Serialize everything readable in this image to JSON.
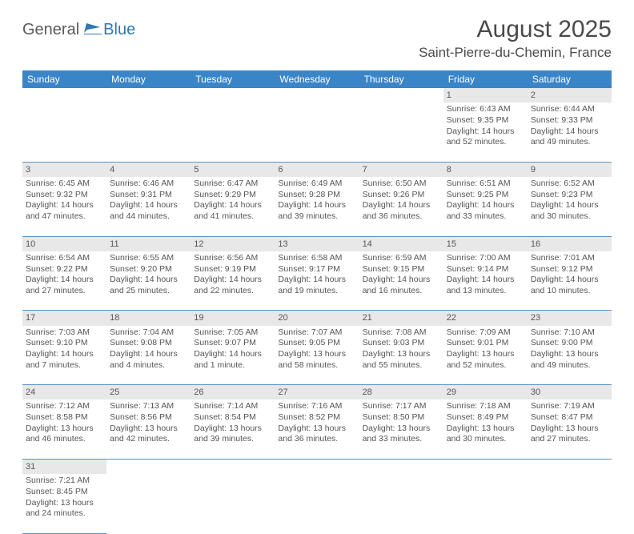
{
  "logo": {
    "general": "General",
    "blue": "Blue"
  },
  "title": "August 2025",
  "location": "Saint-Pierre-du-Chemin, France",
  "headers": [
    "Sunday",
    "Monday",
    "Tuesday",
    "Wednesday",
    "Thursday",
    "Friday",
    "Saturday"
  ],
  "colors": {
    "header_bg": "#3a85c7",
    "header_text": "#ffffff",
    "daynum_bg": "#e8e8e8",
    "row_border": "#5a93c4",
    "text": "#555555",
    "logo_gray": "#5a5a5a",
    "logo_blue": "#2f77b5"
  },
  "weeks": [
    [
      null,
      null,
      null,
      null,
      null,
      {
        "n": "1",
        "sr": "6:43 AM",
        "ss": "9:35 PM",
        "dl": "14 hours and 52 minutes."
      },
      {
        "n": "2",
        "sr": "6:44 AM",
        "ss": "9:33 PM",
        "dl": "14 hours and 49 minutes."
      }
    ],
    [
      {
        "n": "3",
        "sr": "6:45 AM",
        "ss": "9:32 PM",
        "dl": "14 hours and 47 minutes."
      },
      {
        "n": "4",
        "sr": "6:46 AM",
        "ss": "9:31 PM",
        "dl": "14 hours and 44 minutes."
      },
      {
        "n": "5",
        "sr": "6:47 AM",
        "ss": "9:29 PM",
        "dl": "14 hours and 41 minutes."
      },
      {
        "n": "6",
        "sr": "6:49 AM",
        "ss": "9:28 PM",
        "dl": "14 hours and 39 minutes."
      },
      {
        "n": "7",
        "sr": "6:50 AM",
        "ss": "9:26 PM",
        "dl": "14 hours and 36 minutes."
      },
      {
        "n": "8",
        "sr": "6:51 AM",
        "ss": "9:25 PM",
        "dl": "14 hours and 33 minutes."
      },
      {
        "n": "9",
        "sr": "6:52 AM",
        "ss": "9:23 PM",
        "dl": "14 hours and 30 minutes."
      }
    ],
    [
      {
        "n": "10",
        "sr": "6:54 AM",
        "ss": "9:22 PM",
        "dl": "14 hours and 27 minutes."
      },
      {
        "n": "11",
        "sr": "6:55 AM",
        "ss": "9:20 PM",
        "dl": "14 hours and 25 minutes."
      },
      {
        "n": "12",
        "sr": "6:56 AM",
        "ss": "9:19 PM",
        "dl": "14 hours and 22 minutes."
      },
      {
        "n": "13",
        "sr": "6:58 AM",
        "ss": "9:17 PM",
        "dl": "14 hours and 19 minutes."
      },
      {
        "n": "14",
        "sr": "6:59 AM",
        "ss": "9:15 PM",
        "dl": "14 hours and 16 minutes."
      },
      {
        "n": "15",
        "sr": "7:00 AM",
        "ss": "9:14 PM",
        "dl": "14 hours and 13 minutes."
      },
      {
        "n": "16",
        "sr": "7:01 AM",
        "ss": "9:12 PM",
        "dl": "14 hours and 10 minutes."
      }
    ],
    [
      {
        "n": "17",
        "sr": "7:03 AM",
        "ss": "9:10 PM",
        "dl": "14 hours and 7 minutes."
      },
      {
        "n": "18",
        "sr": "7:04 AM",
        "ss": "9:08 PM",
        "dl": "14 hours and 4 minutes."
      },
      {
        "n": "19",
        "sr": "7:05 AM",
        "ss": "9:07 PM",
        "dl": "14 hours and 1 minute."
      },
      {
        "n": "20",
        "sr": "7:07 AM",
        "ss": "9:05 PM",
        "dl": "13 hours and 58 minutes."
      },
      {
        "n": "21",
        "sr": "7:08 AM",
        "ss": "9:03 PM",
        "dl": "13 hours and 55 minutes."
      },
      {
        "n": "22",
        "sr": "7:09 AM",
        "ss": "9:01 PM",
        "dl": "13 hours and 52 minutes."
      },
      {
        "n": "23",
        "sr": "7:10 AM",
        "ss": "9:00 PM",
        "dl": "13 hours and 49 minutes."
      }
    ],
    [
      {
        "n": "24",
        "sr": "7:12 AM",
        "ss": "8:58 PM",
        "dl": "13 hours and 46 minutes."
      },
      {
        "n": "25",
        "sr": "7:13 AM",
        "ss": "8:56 PM",
        "dl": "13 hours and 42 minutes."
      },
      {
        "n": "26",
        "sr": "7:14 AM",
        "ss": "8:54 PM",
        "dl": "13 hours and 39 minutes."
      },
      {
        "n": "27",
        "sr": "7:16 AM",
        "ss": "8:52 PM",
        "dl": "13 hours and 36 minutes."
      },
      {
        "n": "28",
        "sr": "7:17 AM",
        "ss": "8:50 PM",
        "dl": "13 hours and 33 minutes."
      },
      {
        "n": "29",
        "sr": "7:18 AM",
        "ss": "8:49 PM",
        "dl": "13 hours and 30 minutes."
      },
      {
        "n": "30",
        "sr": "7:19 AM",
        "ss": "8:47 PM",
        "dl": "13 hours and 27 minutes."
      }
    ],
    [
      {
        "n": "31",
        "sr": "7:21 AM",
        "ss": "8:45 PM",
        "dl": "13 hours and 24 minutes."
      },
      null,
      null,
      null,
      null,
      null,
      null
    ]
  ],
  "labels": {
    "sunrise": "Sunrise: ",
    "sunset": "Sunset: ",
    "daylight": "Daylight: "
  }
}
